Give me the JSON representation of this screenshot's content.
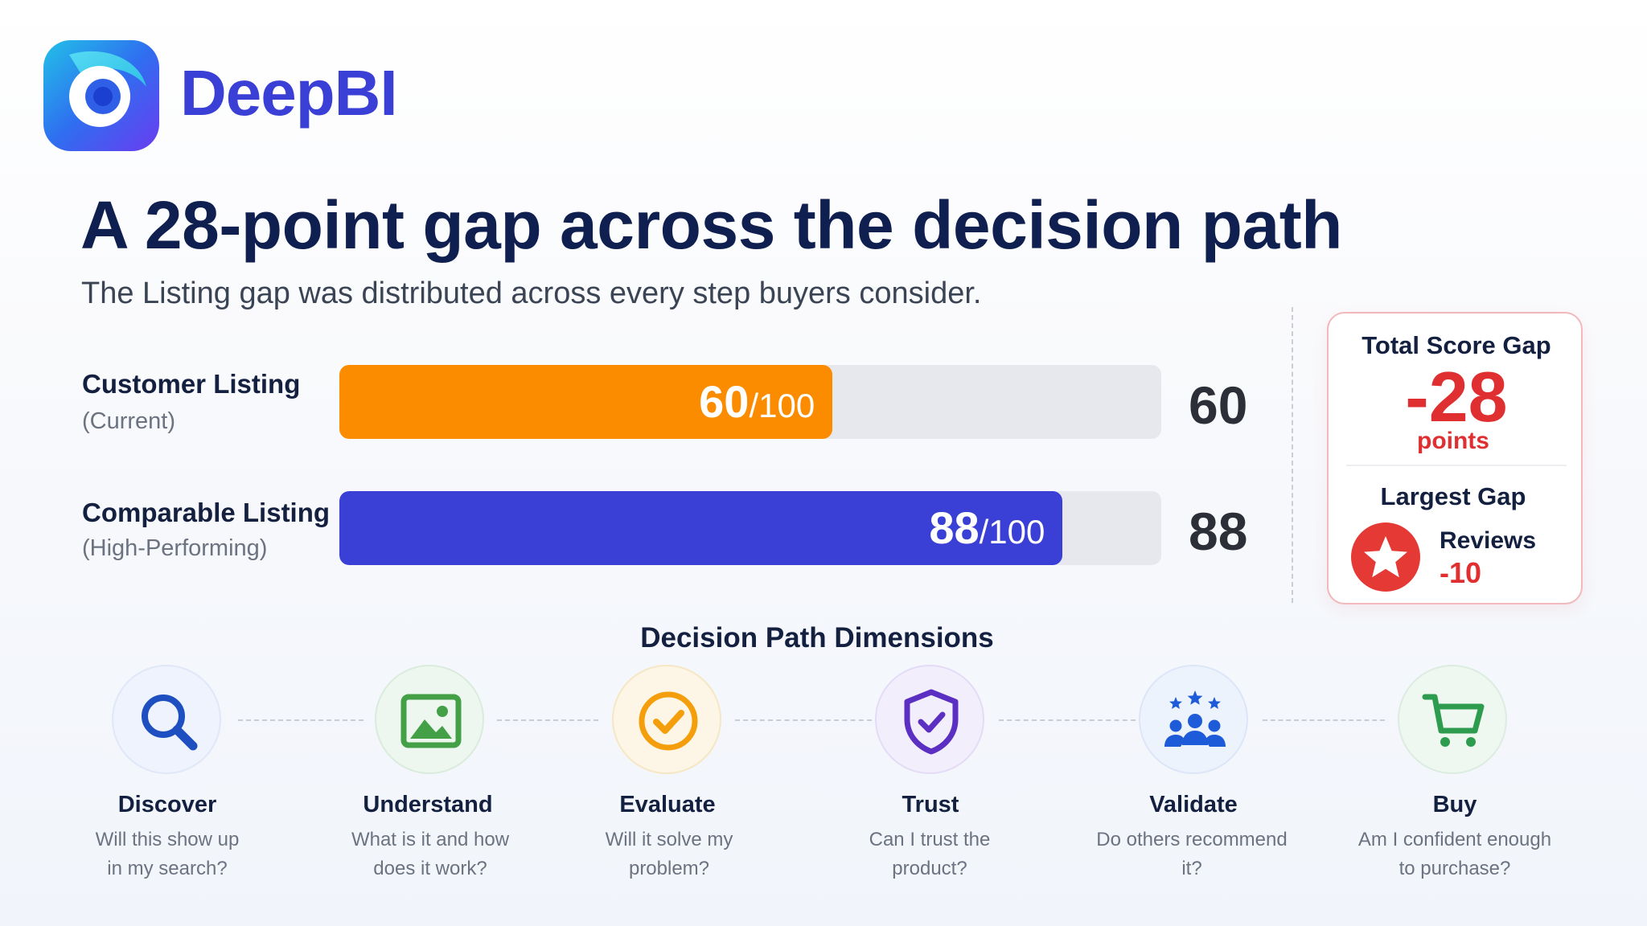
{
  "brand": {
    "name": "DeepBI"
  },
  "header": {
    "title": "A 28-point gap across the decision path",
    "subtitle": "The Listing gap was distributed across every step buyers consider."
  },
  "chart_data": {
    "type": "bar",
    "orientation": "horizontal",
    "max": 100,
    "bars": [
      {
        "label": "Customer Listing",
        "sublabel": "(Current)",
        "value": 60,
        "fill_text": "60",
        "suffix": "/100",
        "color": "#fb8c00"
      },
      {
        "label": "Comparable Listing",
        "sublabel": "(High-Performing)",
        "value": 88,
        "fill_text": "88",
        "suffix": "/100",
        "color": "#3a3fd6"
      }
    ]
  },
  "score_card": {
    "total_label": "Total Score Gap",
    "total_value": "-28",
    "total_unit": "points",
    "largest_label": "Largest Gap",
    "largest_name": "Reviews",
    "largest_value": "-10",
    "icon": "star-icon",
    "accent": "#df2f31"
  },
  "decision_path": {
    "title": "Decision Path Dimensions",
    "steps": [
      {
        "name": "Discover",
        "q1": "Will this show up",
        "q2": "in my search?",
        "icon": "search-icon",
        "color": "#1e4fc1"
      },
      {
        "name": "Understand",
        "q1": "What is it and how",
        "q2": "does it work?",
        "icon": "image-icon",
        "color": "#43a047"
      },
      {
        "name": "Evaluate",
        "q1": "Will it solve my",
        "q2": "problem?",
        "icon": "check-circle-icon",
        "color": "#f59e0b"
      },
      {
        "name": "Trust",
        "q1": "Can I trust the",
        "q2": "product?",
        "icon": "shield-check-icon",
        "color": "#5b2fc2"
      },
      {
        "name": "Validate",
        "q1": "Do others recommend",
        "q2": "it?",
        "icon": "people-stars-icon",
        "color": "#1e5bd8"
      },
      {
        "name": "Buy",
        "q1": "Am I confident enough",
        "q2": "to purchase?",
        "icon": "cart-icon",
        "color": "#2e9c4f"
      }
    ]
  }
}
